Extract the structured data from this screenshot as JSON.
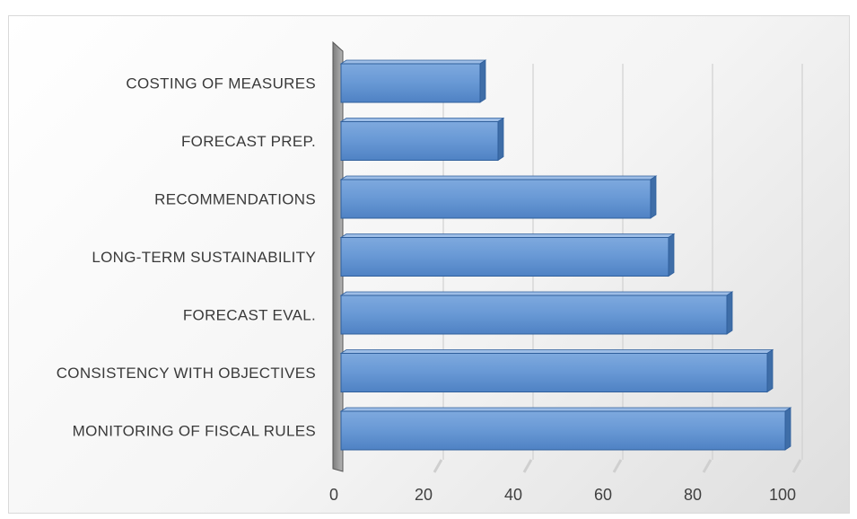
{
  "chart_data": {
    "type": "bar",
    "orientation": "horizontal",
    "style": "3d",
    "categories": [
      "COSTING OF MEASURES",
      "FORECAST PREP.",
      "RECOMMENDATIONS",
      "LONG-TERM SUSTAINABILITY",
      "FORECAST EVAL.",
      "CONSISTENCY WITH OBJECTIVES",
      "MONITORING OF FISCAL RULES"
    ],
    "values": [
      31,
      35,
      69,
      73,
      86,
      95,
      99
    ],
    "xlim": [
      0,
      100
    ],
    "xticks": [
      "0",
      "20",
      "40",
      "60",
      "80",
      "100"
    ],
    "title": "",
    "xlabel": "",
    "ylabel": "",
    "grid": "vertical",
    "legend": "none",
    "bar_color": "#5b8fd0",
    "bar_edge_color": "#2f5f9c",
    "wall_color": "#9a9a9a"
  }
}
